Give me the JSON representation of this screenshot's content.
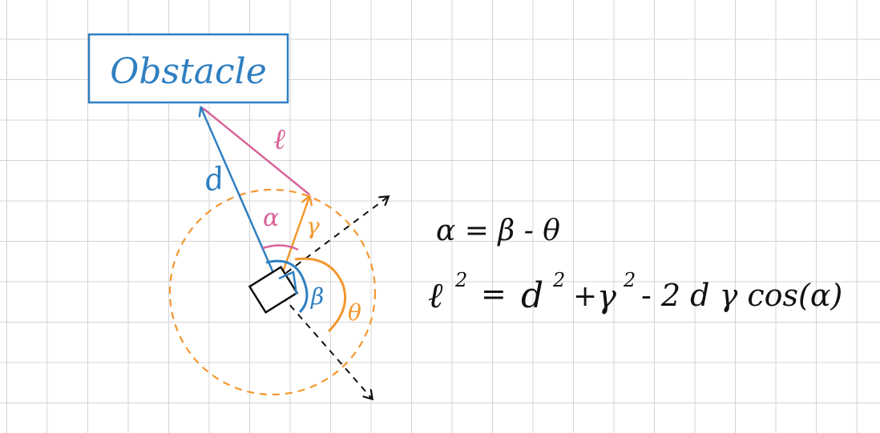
{
  "obstacle": {
    "label": "Obstacle"
  },
  "labels": {
    "d": "d",
    "l": "ℓ",
    "r": "γ",
    "alpha": "α",
    "beta": "β",
    "theta": "θ"
  },
  "equations": {
    "eq1": "α = β - θ",
    "eq2_l": "ℓ",
    "eq2_exp1": "2",
    "eq2_eqsign": "=",
    "eq2_d": "d",
    "eq2_exp2": "2",
    "eq2_plus": "+",
    "eq2_r": "γ",
    "eq2_exp3": "2",
    "eq2_rest": "- 2 d γ cos(α)"
  },
  "colors": {
    "blue": "#2f7fc1",
    "pink": "#d9629a",
    "orange": "#f3972e",
    "black": "#111111"
  }
}
